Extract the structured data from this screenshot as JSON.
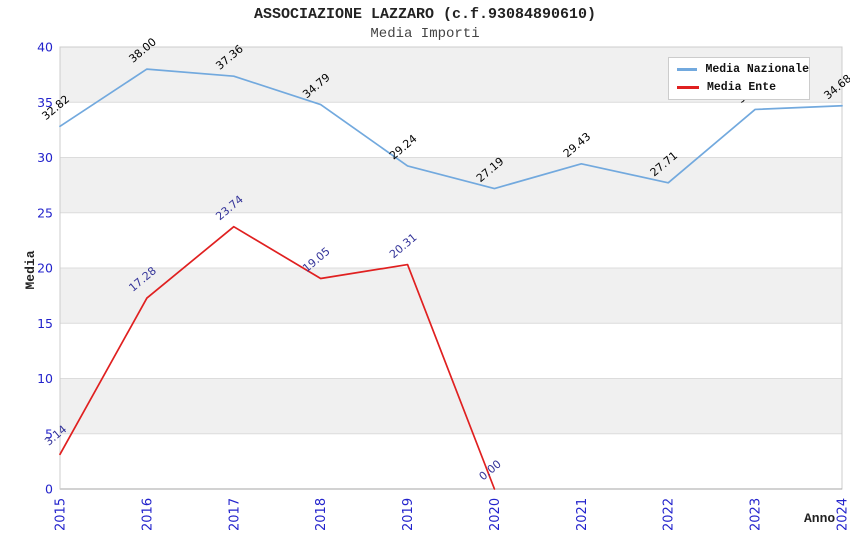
{
  "chart": {
    "title": "ASSOCIAZIONE LAZZARO (c.f.93084890610)",
    "subtitle": "Media Importi",
    "x_axis_title": "Anno",
    "y_axis_title": "Media"
  },
  "chart_data": {
    "type": "line",
    "title": "ASSOCIAZIONE LAZZARO (c.f.93084890610)",
    "subtitle": "Media Importi",
    "xlabel": "Anno",
    "ylabel": "Media",
    "categories": [
      "2015",
      "2016",
      "2017",
      "2018",
      "2019",
      "2020",
      "2021",
      "2022",
      "2023",
      "2024"
    ],
    "series": [
      {
        "name": "Media Nazionale",
        "color": "#72a9de",
        "label_color": "#000000",
        "values": [
          32.82,
          38.0,
          37.36,
          34.79,
          29.24,
          27.19,
          29.43,
          27.71,
          34.35,
          34.68
        ]
      },
      {
        "name": "Media Ente",
        "color": "#e02020",
        "label_color": "#333399",
        "values": [
          3.14,
          17.28,
          23.74,
          19.05,
          20.31,
          0.0,
          null,
          null,
          null,
          null
        ]
      }
    ],
    "ylim": [
      0,
      40
    ],
    "ytick_step": 5,
    "grid": "alternating-bands",
    "legend_position": "top-right"
  },
  "colors": {
    "tick_label": "#2323cc",
    "band": "#f0f0f0",
    "gridline": "#dcdcdc",
    "axis": "#a6a6a6",
    "frame": "#cccccc",
    "background": "#ffffff"
  }
}
